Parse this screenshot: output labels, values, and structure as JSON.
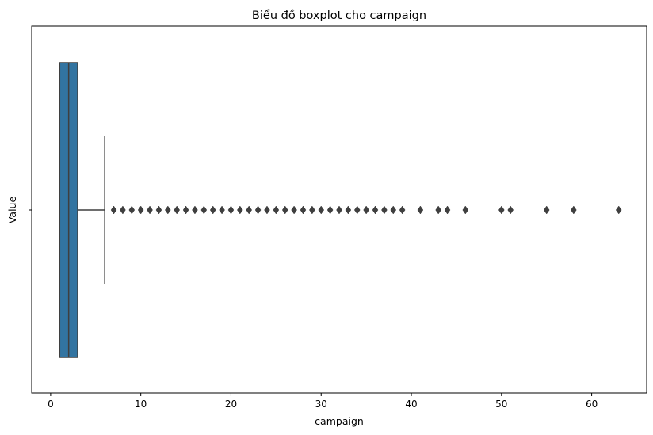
{
  "chart_data": {
    "type": "boxplot",
    "title": "Biểu đồ boxplot cho campaign",
    "xlabel": "campaign",
    "ylabel": "Value",
    "xlim": [
      -2.1,
      66.1
    ],
    "x_ticks": [
      0,
      10,
      20,
      30,
      40,
      50,
      60
    ],
    "y_tick_labels": [
      ""
    ],
    "grid": false,
    "box": {
      "min_whisker": 1,
      "q1": 1,
      "median": 2,
      "q3": 3,
      "max_whisker": 6,
      "color": "#3274a1"
    },
    "outliers": [
      7,
      8,
      9,
      10,
      11,
      12,
      13,
      14,
      15,
      16,
      17,
      18,
      19,
      20,
      21,
      22,
      23,
      24,
      25,
      26,
      27,
      28,
      29,
      30,
      31,
      32,
      33,
      34,
      35,
      36,
      37,
      38,
      39,
      41,
      43,
      44,
      46,
      50,
      51,
      55,
      58,
      63
    ],
    "outlier_marker": "diamond",
    "line_color": "#3f3f3f"
  }
}
